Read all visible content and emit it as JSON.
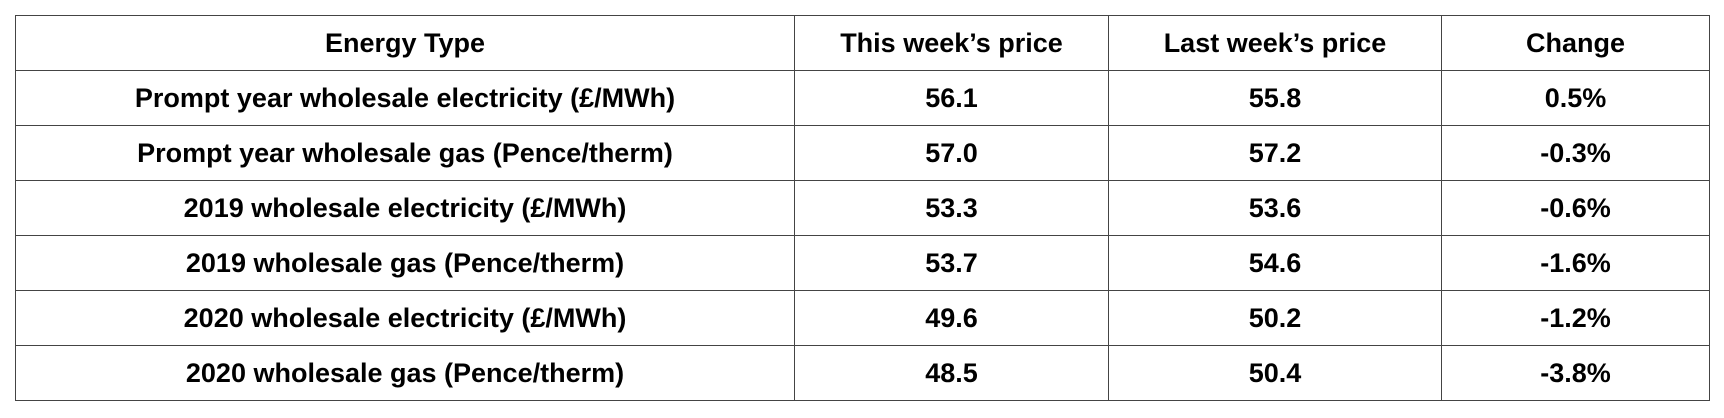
{
  "table": {
    "header": [
      "Energy Type",
      "This week’s price",
      "Last week’s price",
      "Change"
    ],
    "rows": [
      [
        "Prompt year wholesale electricity (£/MWh)",
        "56.1",
        "55.8",
        "0.5%"
      ],
      [
        "Prompt year wholesale gas (Pence/therm)",
        "57.0",
        "57.2",
        "-0.3%"
      ],
      [
        "2019 wholesale electricity (£/MWh)",
        "53.3",
        "53.6",
        "-0.6%"
      ],
      [
        "2019 wholesale gas (Pence/therm)",
        "53.7",
        "54.6",
        "-1.6%"
      ],
      [
        "2020 wholesale electricity (£/MWh)",
        "49.6",
        "50.2",
        "-1.2%"
      ],
      [
        "2020 wholesale gas (Pence/therm)",
        "48.5",
        "50.4",
        "-3.8%"
      ]
    ]
  }
}
